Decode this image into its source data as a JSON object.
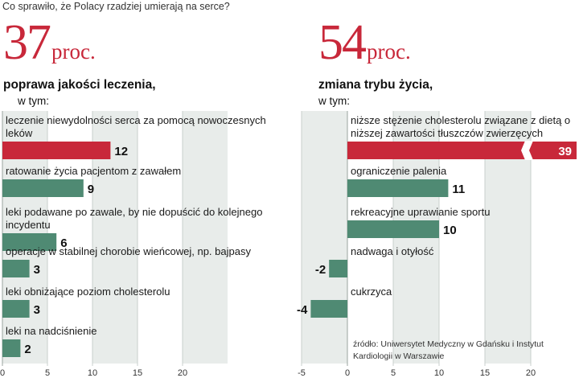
{
  "header": {
    "question": "Co sprawiło, że Polacy rzadziej umierają na serce?"
  },
  "left": {
    "big_number": "37",
    "unit": "proc.",
    "heading": "poprawa jakości leczenia,",
    "sub": "w tym:"
  },
  "right": {
    "big_number": "54",
    "unit": "proc.",
    "heading": "zmiana trybu życia,",
    "sub": "w tym:"
  },
  "source": "źródło: Uniwersytet Medyczny w Gdańsku i Instytut Kardiologii w Warszawie",
  "colors": {
    "accent": "#c8283a",
    "bar_green": "#4f8a73",
    "band": "#e8ecea"
  },
  "chart_data": [
    {
      "type": "bar",
      "orientation": "horizontal",
      "categories": [
        "leczenie niewydolności serca za pomocą nowoczesnych leków",
        "ratowanie życia pacjentom z zawałem",
        "leki podawane po zawale, by nie dopuścić do kolejnego incydentu",
        "operacje w stabilnej chorobie wieńcowej, np. bajpasy",
        "leki obniżające poziom cholesterolu",
        "leki na nadciśnienie"
      ],
      "values": [
        12,
        9,
        6,
        3,
        3,
        2
      ],
      "value_labels": [
        "12",
        "9",
        "6",
        "3",
        "3",
        "2"
      ],
      "highlight_index": 0,
      "xlim": [
        0,
        25
      ],
      "xticks": [
        0,
        5,
        10,
        15,
        20
      ],
      "tick_labels": [
        "0",
        "5",
        "10",
        "15",
        "20"
      ]
    },
    {
      "type": "bar",
      "orientation": "horizontal",
      "categories": [
        "niższe stężenie cholesterolu związane z dietą o niższej zawartości tłuszczów zwierzęcych",
        "ograniczenie palenia",
        "rekreacyjne uprawianie sportu",
        "nadwaga i otyłość",
        "cukrzyca"
      ],
      "values": [
        39,
        11,
        10,
        -2,
        -4
      ],
      "value_labels": [
        "39",
        "11",
        "10",
        "-2",
        "-4"
      ],
      "highlight_index": 0,
      "broken_axis_index": 0,
      "xlim": [
        -5,
        25
      ],
      "xticks": [
        -5,
        0,
        5,
        10,
        15,
        20
      ],
      "tick_labels": [
        "-5",
        "0",
        "5",
        "10",
        "15",
        "20"
      ]
    }
  ]
}
